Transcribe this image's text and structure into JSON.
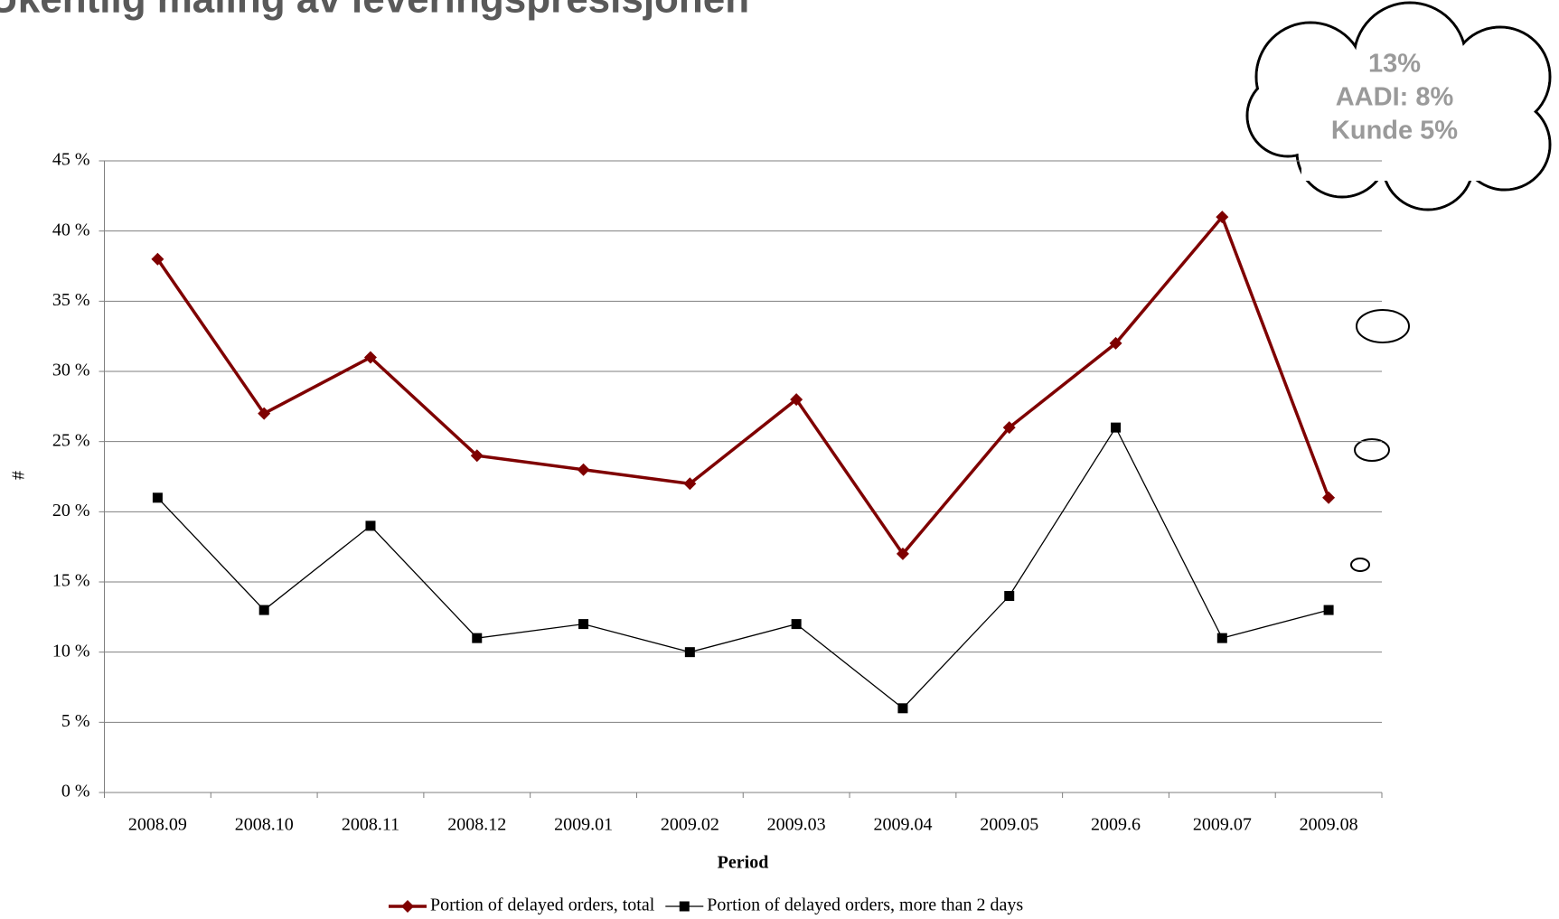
{
  "chart_data": {
    "type": "line",
    "title": "Ukentlig måling av leveringspresisjonen",
    "xlabel": "Period",
    "ylabel": "#",
    "annotations": [
      "13%",
      "AADI: 8%",
      "Kunde 5%"
    ],
    "categories": [
      "2008.09",
      "2008.10",
      "2008.11",
      "2008.12",
      "2009.01",
      "2009.02",
      "2009.03",
      "2009.04",
      "2009.05",
      "2009.6",
      "2009.07",
      "2009.08"
    ],
    "series": [
      {
        "name": "Portion of delayed orders, total",
        "color": "#7f0000",
        "marker": "diamond",
        "values": [
          38,
          27,
          31,
          24,
          23,
          22,
          28,
          17,
          26,
          32,
          41,
          21
        ]
      },
      {
        "name": "Portion of delayed orders, more than 2 days",
        "color": "#000000",
        "marker": "square",
        "values": [
          21,
          13,
          19,
          11,
          12,
          10,
          12,
          6,
          14,
          26,
          11,
          13
        ]
      }
    ],
    "ylim": [
      0,
      45
    ],
    "yticks": [
      {
        "value": 0,
        "label": "0 %"
      },
      {
        "value": 5,
        "label": "5 %"
      },
      {
        "value": 10,
        "label": "10 %"
      },
      {
        "value": 15,
        "label": "15 %"
      },
      {
        "value": 20,
        "label": "20 %"
      },
      {
        "value": 25,
        "label": "25 %"
      },
      {
        "value": 30,
        "label": "30 %"
      },
      {
        "value": 35,
        "label": "35 %"
      },
      {
        "value": 40,
        "label": "40 %"
      },
      {
        "value": 45,
        "label": "45 %"
      }
    ],
    "grid": true,
    "legend": "bottom"
  }
}
